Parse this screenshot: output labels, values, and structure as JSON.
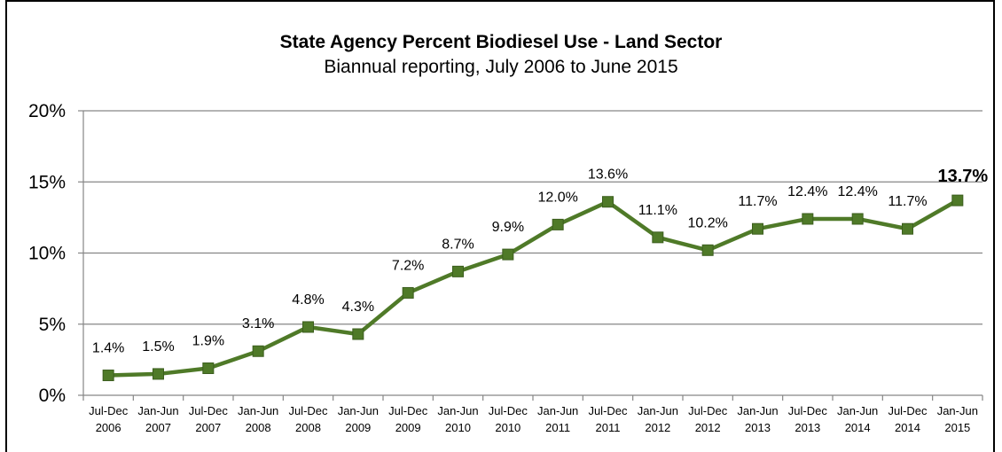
{
  "chart_data": {
    "type": "line",
    "title": "State Agency Percent Biodiesel Use - Land Sector",
    "subtitle": "Biannual reporting, July 2006 to June 2015",
    "xlabel": "",
    "ylabel": "",
    "categories": [
      [
        "Jul-Dec",
        "2006"
      ],
      [
        "Jan-Jun",
        "2007"
      ],
      [
        "Jul-Dec",
        "2007"
      ],
      [
        "Jan-Jun",
        "2008"
      ],
      [
        "Jul-Dec",
        "2008"
      ],
      [
        "Jan-Jun",
        "2009"
      ],
      [
        "Jul-Dec",
        "2009"
      ],
      [
        "Jan-Jun",
        "2010"
      ],
      [
        "Jul-Dec",
        "2010"
      ],
      [
        "Jan-Jun",
        "2011"
      ],
      [
        "Jul-Dec",
        "2011"
      ],
      [
        "Jan-Jun",
        "2012"
      ],
      [
        "Jul-Dec",
        "2012"
      ],
      [
        "Jan-Jun",
        "2013"
      ],
      [
        "Jul-Dec",
        "2013"
      ],
      [
        "Jan-Jun",
        "2014"
      ],
      [
        "Jul-Dec",
        "2014"
      ],
      [
        "Jan-Jun",
        "2015"
      ]
    ],
    "series": [
      {
        "values": [
          1.4,
          1.5,
          1.9,
          3.1,
          4.8,
          4.3,
          7.2,
          8.7,
          9.9,
          12.0,
          13.6,
          11.1,
          10.2,
          11.7,
          12.4,
          12.4,
          11.7,
          13.7
        ],
        "data_labels": [
          "1.4%",
          "1.5%",
          "1.9%",
          "3.1%",
          "4.8%",
          "4.3%",
          "7.2%",
          "8.7%",
          "9.9%",
          "12.0%",
          "13.6%",
          "11.1%",
          "10.2%",
          "11.7%",
          "12.4%",
          "12.4%",
          "11.7%",
          "13.7%"
        ],
        "emphasized_label_index": 17,
        "line_color": "#4f7a28",
        "marker_color": "#4f7a28",
        "marker_shape": "square"
      }
    ],
    "ylim": [
      0,
      20
    ],
    "yticks": [
      0,
      5,
      10,
      15,
      20
    ],
    "ytick_labels": [
      "0%",
      "5%",
      "10%",
      "15%",
      "20%"
    ],
    "grid": "horizontal",
    "grid_color": "#868686",
    "legend": "none"
  }
}
